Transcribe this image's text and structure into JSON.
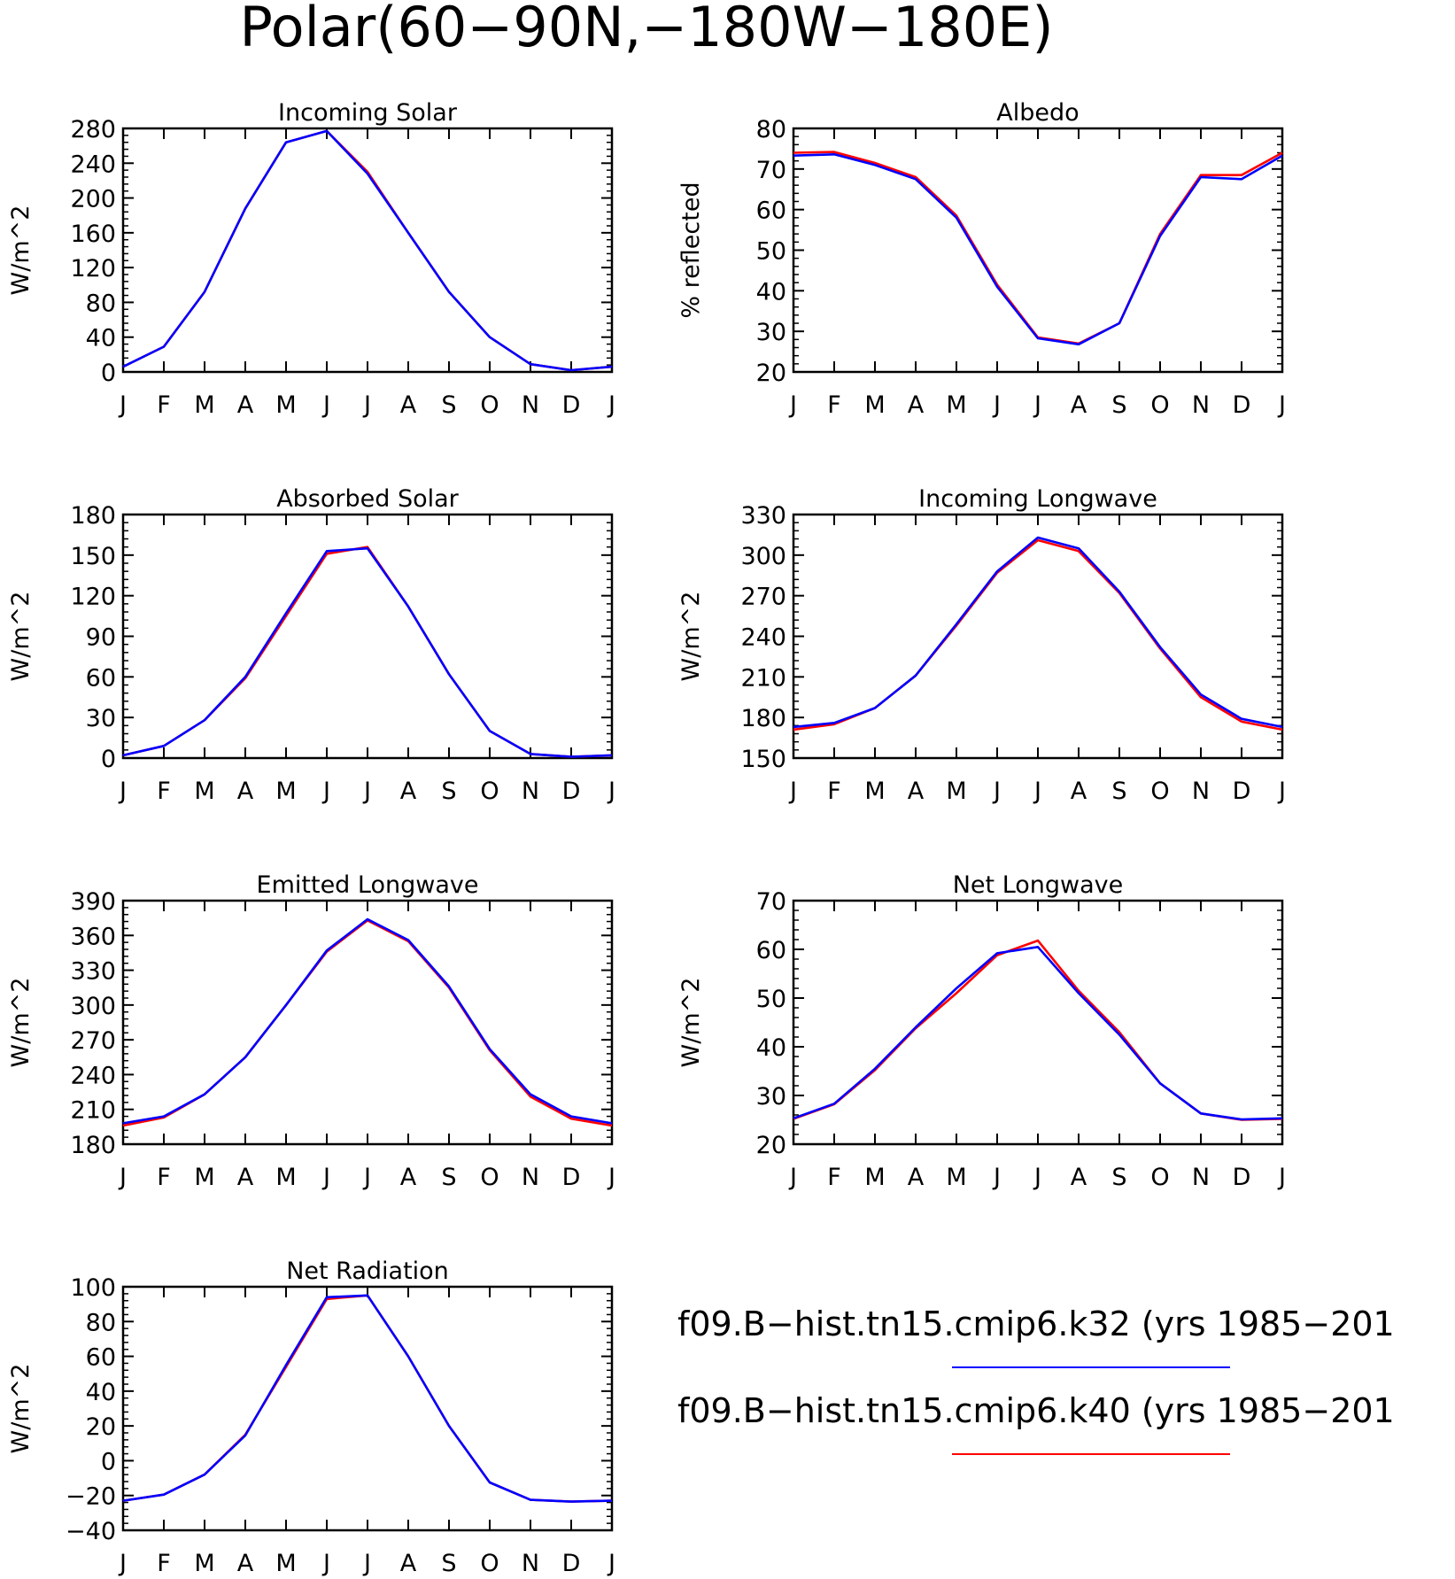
{
  "page_title": "Polar(60−90N,−180W−180E)",
  "months": [
    "J",
    "F",
    "M",
    "A",
    "M",
    "J",
    "J",
    "A",
    "S",
    "O",
    "N",
    "D",
    "J"
  ],
  "legend": [
    {
      "label": "f09.B−hist.tn15.cmip6.k32 (yrs 1985−201",
      "color": "#0000ff"
    },
    {
      "label": "f09.B−hist.tn15.cmip6.k40 (yrs 1985−201",
      "color": "#ff0000"
    }
  ],
  "chart_data": [
    {
      "type": "line",
      "title": "Incoming Solar",
      "ylabel": "W/m^2",
      "ylim": [
        0,
        280
      ],
      "yticks": [
        0,
        40,
        80,
        120,
        160,
        200,
        240,
        280
      ],
      "series": [
        {
          "color": "#ff0000",
          "values": [
            6,
            29,
            92,
            188,
            264,
            277,
            230,
            160,
            92,
            40,
            9,
            2,
            6
          ]
        },
        {
          "color": "#0000ff",
          "values": [
            6,
            29,
            92,
            188,
            264,
            277,
            228,
            160,
            92,
            40,
            9,
            2,
            6
          ]
        }
      ]
    },
    {
      "type": "line",
      "title": "Albedo",
      "ylabel": "% reflected",
      "ylim": [
        20,
        80
      ],
      "yticks": [
        20,
        30,
        40,
        50,
        60,
        70,
        80
      ],
      "series": [
        {
          "color": "#ff0000",
          "values": [
            74,
            74.2,
            71.5,
            68,
            58.5,
            41.5,
            28.5,
            27,
            32,
            54,
            68.5,
            68.5,
            74
          ]
        },
        {
          "color": "#0000ff",
          "values": [
            73.3,
            73.6,
            71,
            67.5,
            58,
            41,
            28.3,
            26.8,
            32,
            53.5,
            68,
            67.5,
            73.3
          ]
        }
      ]
    },
    {
      "type": "line",
      "title": "Absorbed Solar",
      "ylabel": "W/m^2",
      "ylim": [
        0,
        180
      ],
      "yticks": [
        0,
        30,
        60,
        90,
        120,
        150,
        180
      ],
      "series": [
        {
          "color": "#ff0000",
          "values": [
            2,
            9,
            28,
            59,
            105,
            151,
            156,
            112,
            62,
            20,
            3,
            1,
            2
          ]
        },
        {
          "color": "#0000ff",
          "values": [
            2,
            9,
            28,
            60,
            107,
            153,
            155,
            112,
            62,
            20,
            3,
            1,
            2
          ]
        }
      ]
    },
    {
      "type": "line",
      "title": "Incoming Longwave",
      "ylabel": "W/m^2",
      "ylim": [
        150,
        330
      ],
      "yticks": [
        150,
        180,
        210,
        240,
        270,
        300,
        330
      ],
      "series": [
        {
          "color": "#ff0000",
          "values": [
            171,
            175,
            187,
            211,
            248,
            287,
            311,
            303,
            272,
            231,
            195,
            177,
            171
          ]
        },
        {
          "color": "#0000ff",
          "values": [
            173,
            176,
            187,
            211,
            249,
            288,
            313,
            305,
            273,
            232,
            197,
            179,
            173
          ]
        }
      ]
    },
    {
      "type": "line",
      "title": "Emitted Longwave",
      "ylabel": "W/m^2",
      "ylim": [
        180,
        390
      ],
      "yticks": [
        180,
        210,
        240,
        270,
        300,
        330,
        360,
        390
      ],
      "series": [
        {
          "color": "#ff0000",
          "values": [
            196,
            203,
            223,
            255,
            300,
            346,
            373,
            355,
            315,
            261,
            221,
            202,
            196
          ]
        },
        {
          "color": "#0000ff",
          "values": [
            198,
            204,
            223,
            255,
            300,
            347,
            374,
            356,
            316,
            262,
            223,
            204,
            198
          ]
        }
      ]
    },
    {
      "type": "line",
      "title": "Net Longwave",
      "ylabel": "W/m^2",
      "ylim": [
        20,
        70
      ],
      "yticks": [
        20,
        30,
        40,
        50,
        60,
        70
      ],
      "series": [
        {
          "color": "#ff0000",
          "values": [
            25.2,
            28.2,
            35.2,
            43.8,
            51,
            58.8,
            61.8,
            51.5,
            43,
            32.5,
            26.3,
            25,
            25.2
          ]
        },
        {
          "color": "#0000ff",
          "values": [
            25.3,
            28.3,
            35.5,
            44,
            52,
            59.2,
            60.5,
            51,
            42.5,
            32.5,
            26.3,
            25.1,
            25.3
          ]
        }
      ]
    },
    {
      "type": "line",
      "title": "Net Radiation",
      "ylabel": "W/m^2",
      "ylim": [
        -40,
        100
      ],
      "yticks": [
        -40,
        -20,
        0,
        20,
        40,
        60,
        80,
        100
      ],
      "series": [
        {
          "color": "#ff0000",
          "values": [
            -23,
            -19.5,
            -8,
            15,
            54,
            93,
            95,
            60,
            20,
            -12.5,
            -22.5,
            -23.5,
            -23
          ]
        },
        {
          "color": "#0000ff",
          "values": [
            -23,
            -19.5,
            -8,
            14.5,
            55,
            94,
            95,
            60,
            20,
            -12.5,
            -22.5,
            -23.5,
            -23
          ]
        }
      ]
    }
  ]
}
